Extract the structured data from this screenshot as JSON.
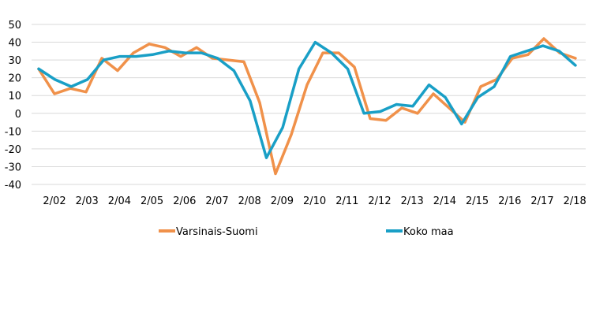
{
  "chart_data": {
    "type": "line",
    "title": "",
    "xlabel": "",
    "ylabel": "",
    "ylim": [
      -40,
      50
    ],
    "yticks": [
      -40,
      -30,
      -20,
      -10,
      0,
      10,
      20,
      30,
      40,
      50
    ],
    "xtick_labels": [
      "2/02",
      "2/03",
      "2/04",
      "2/05",
      "2/06",
      "2/07",
      "2/08",
      "2/09",
      "2/10",
      "2/11",
      "2/12",
      "2/13",
      "2/14",
      "2/15",
      "2/16",
      "2/17",
      "2/18"
    ],
    "grid": true,
    "legend_position": "bottom",
    "series": [
      {
        "name": "Varsinais-Suomi",
        "color": "#f0914a",
        "values": [
          25,
          11,
          14,
          12,
          31,
          24,
          34,
          39,
          37,
          32,
          37,
          31,
          30,
          29,
          6,
          -34,
          -12,
          16,
          34,
          34,
          26,
          -3,
          -4,
          3,
          0,
          11,
          3,
          -5,
          15,
          19,
          31,
          33,
          42,
          34,
          31
        ]
      },
      {
        "name": "Koko maa",
        "color": "#199fc6",
        "values": [
          25,
          19,
          15,
          19,
          30,
          32,
          32,
          33,
          35,
          34,
          34,
          31,
          24,
          7,
          -25,
          -8,
          25,
          40,
          34,
          25,
          0,
          1,
          5,
          4,
          16,
          9,
          -6,
          9,
          15,
          32,
          35,
          38,
          35,
          27
        ]
      }
    ]
  }
}
